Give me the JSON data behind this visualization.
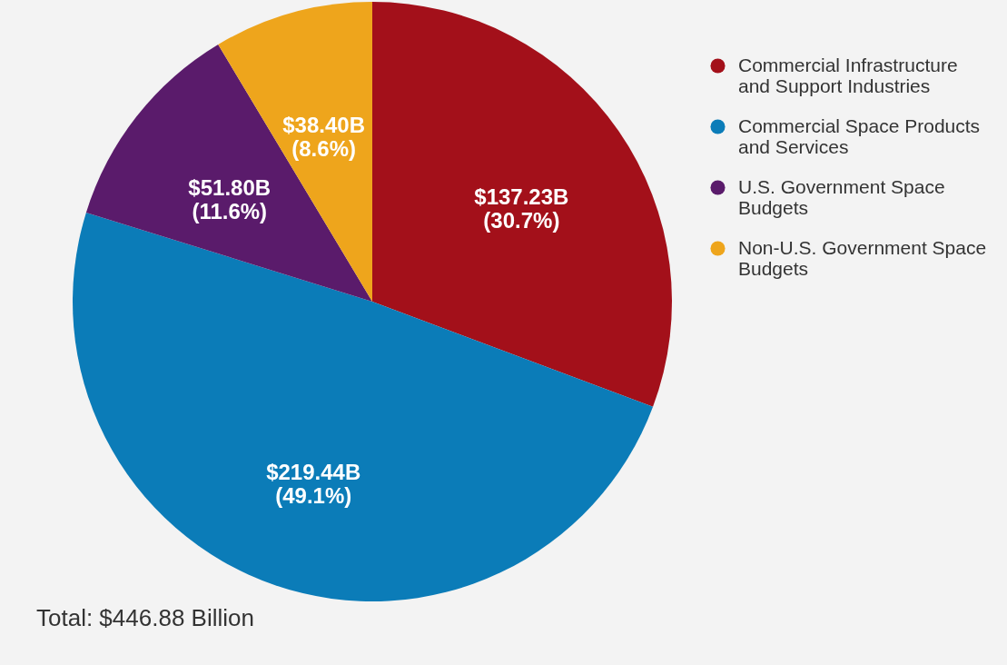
{
  "chart_data": {
    "type": "pie",
    "categories": [
      "Commercial Infrastructure and Support Industries",
      "Commercial Space Products and Services",
      "U.S. Government Space Budgets",
      "Non-U.S. Government Space Budgets"
    ],
    "values": [
      30.7,
      49.1,
      11.6,
      8.6
    ],
    "colors": [
      "#a3101a",
      "#0b7cb8",
      "#5a1b6b",
      "#eea51c"
    ],
    "value_labels": [
      "$137.23B (30.7%)",
      "$219.44B (49.1%)",
      "$51.80B (11.6%)",
      "$38.40B (8.6%)"
    ],
    "annotations": [
      "Total: $446.88 Billion"
    ],
    "legend": "top right"
  }
}
